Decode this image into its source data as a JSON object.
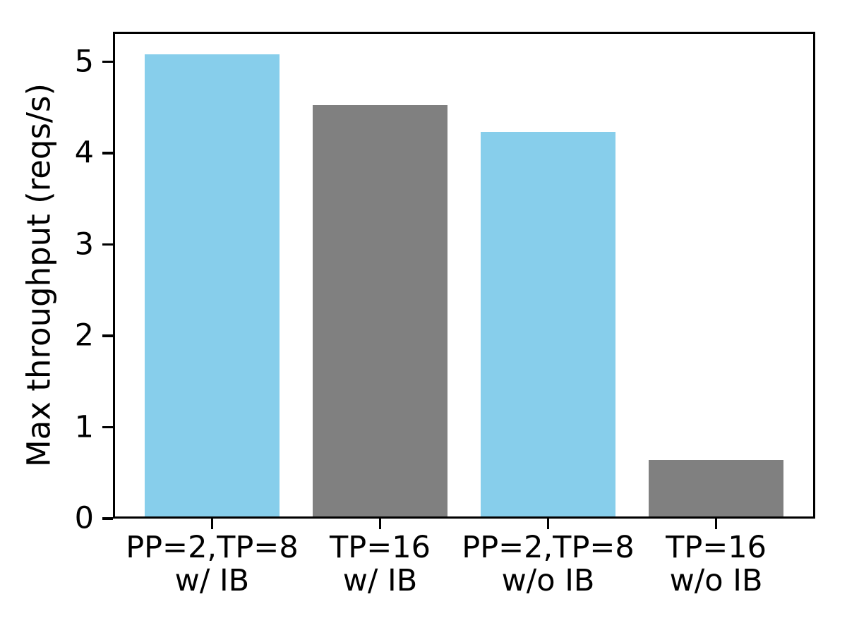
{
  "chart_data": {
    "type": "bar",
    "categories": [
      "PP=2,TP=8\nw/ IB",
      "TP=16\nw/ IB",
      "PP=2,TP=8\nw/o IB",
      "TP=16\nw/o IB"
    ],
    "values": [
      5.08,
      4.53,
      4.23,
      0.64
    ],
    "bar_colors": [
      "#87CEEB",
      "#808080",
      "#87CEEB",
      "#808080"
    ],
    "title": "",
    "xlabel": "",
    "ylabel": "Max throughput (reqs/s)",
    "ylim": [
      0,
      5.33
    ],
    "yticks": [
      0,
      1,
      2,
      3,
      4,
      5
    ],
    "xlim": [
      -0.59,
      3.59
    ],
    "bar_width": 0.8,
    "grid": false,
    "legend": false,
    "frame_color": "#000000",
    "text_color": "#000000",
    "background_color": "#ffffff"
  }
}
